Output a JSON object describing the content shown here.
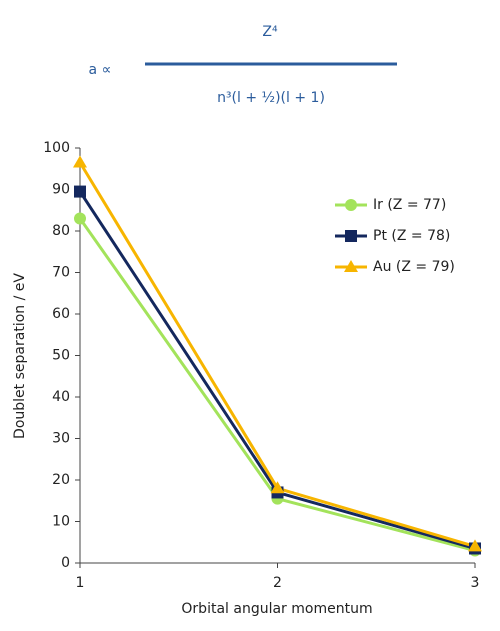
{
  "chart_data": {
    "type": "line",
    "formula": {
      "lhs": "a ∝",
      "numerator": "Z⁴",
      "denominator": "n³(l + ½)(l + 1)"
    },
    "x_label": "Orbital angular momentum",
    "y_label": "Doublet separation / eV",
    "x": [
      1,
      2,
      3
    ],
    "series": [
      {
        "name": "Ir (Z = 77)",
        "color": "#a3e35b",
        "marker": "circle",
        "values": [
          83,
          15.5,
          3
        ]
      },
      {
        "name": "Pt (Z = 78)",
        "color": "#14285e",
        "marker": "square",
        "values": [
          89.5,
          17,
          3.5
        ]
      },
      {
        "name": "Au (Z = 79)",
        "color": "#f7b500",
        "marker": "triangle",
        "values": [
          96.5,
          18,
          4
        ]
      }
    ],
    "xlim": [
      1,
      3
    ],
    "xticks": [
      1,
      2,
      3
    ],
    "ylim": [
      0,
      100
    ],
    "yticks": [
      0,
      10,
      20,
      30,
      40,
      50,
      60,
      70,
      80,
      90,
      100
    ],
    "legend": "upper right"
  }
}
